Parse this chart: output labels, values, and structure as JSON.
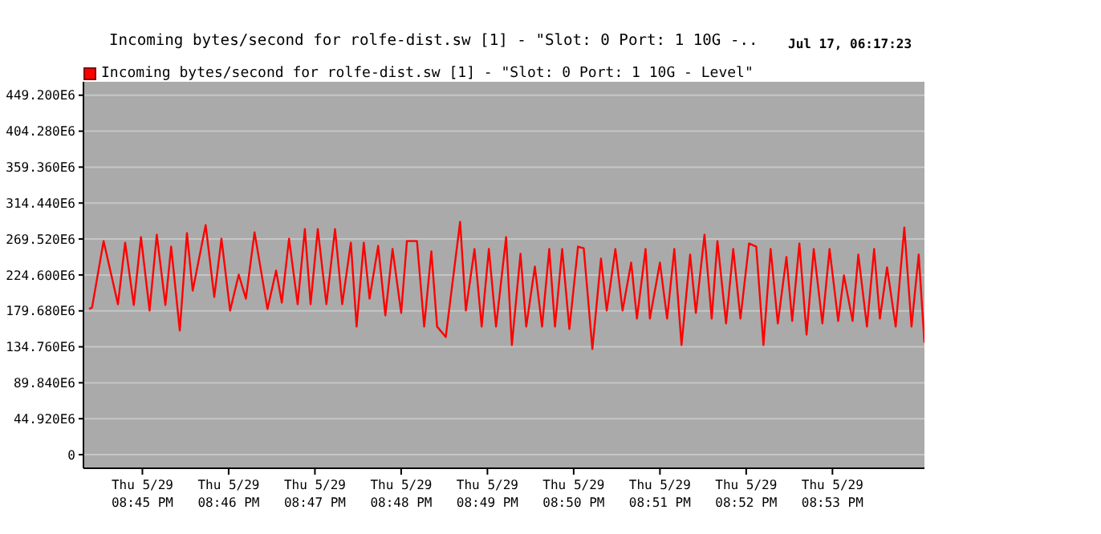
{
  "chart_data": {
    "type": "line",
    "title": "Incoming bytes/second for rolfe-dist.sw [1] - \"Slot: 0 Port: 1 10G -..",
    "subtitle": "Jul 17, 06:17:23",
    "x": [
      "--05-29T20:44:23",
      "--05-29T20:44:25",
      "--05-29T20:44:33",
      "--05-29T20:44:43",
      "--05-29T20:44:48",
      "--05-29T20:44:54",
      "--05-29T20:44:59",
      "--05-29T20:45:05",
      "--05-29T20:45:10",
      "--05-29T20:45:16",
      "--05-29T20:45:20",
      "--05-29T20:45:26",
      "--05-29T20:45:31",
      "--05-29T20:45:35",
      "--05-29T20:45:44",
      "--05-29T20:45:50",
      "--05-29T20:45:55",
      "--05-29T20:46:01",
      "--05-29T20:46:07",
      "--05-29T20:46:12",
      "--05-29T20:46:18",
      "--05-29T20:46:27",
      "--05-29T20:46:33",
      "--05-29T20:46:37",
      "--05-29T20:46:42",
      "--05-29T20:46:48",
      "--05-29T20:46:53",
      "--05-29T20:46:57",
      "--05-29T20:47:02",
      "--05-29T20:47:08",
      "--05-29T20:47:14",
      "--05-29T20:47:19",
      "--05-29T20:47:25",
      "--05-29T20:47:29",
      "--05-29T20:47:34",
      "--05-29T20:47:38",
      "--05-29T20:47:44",
      "--05-29T20:47:49",
      "--05-29T20:47:54",
      "--05-29T20:48:00",
      "--05-29T20:48:04",
      "--05-29T20:48:11",
      "--05-29T20:48:16",
      "--05-29T20:48:21",
      "--05-29T20:48:25",
      "--05-29T20:48:31",
      "--05-29T20:48:41",
      "--05-29T20:48:45",
      "--05-29T20:48:51",
      "--05-29T20:48:56",
      "--05-29T20:49:01",
      "--05-29T20:49:06",
      "--05-29T20:49:13",
      "--05-29T20:49:17",
      "--05-29T20:49:23",
      "--05-29T20:49:27",
      "--05-29T20:49:33",
      "--05-29T20:49:38",
      "--05-29T20:49:43",
      "--05-29T20:49:47",
      "--05-29T20:49:52",
      "--05-29T20:49:57",
      "--05-29T20:50:03",
      "--05-29T20:50:07",
      "--05-29T20:50:13",
      "--05-29T20:50:19",
      "--05-29T20:50:23",
      "--05-29T20:50:29",
      "--05-29T20:50:34",
      "--05-29T20:50:40",
      "--05-29T20:50:44",
      "--05-29T20:50:50",
      "--05-29T20:50:53",
      "--05-29T20:51:00",
      "--05-29T20:51:05",
      "--05-29T20:51:10",
      "--05-29T20:51:15",
      "--05-29T20:51:21",
      "--05-29T20:51:25",
      "--05-29T20:51:31",
      "--05-29T20:51:36",
      "--05-29T20:51:40",
      "--05-29T20:51:46",
      "--05-29T20:51:51",
      "--05-29T20:51:56",
      "--05-29T20:52:02",
      "--05-29T20:52:07",
      "--05-29T20:52:12",
      "--05-29T20:52:17",
      "--05-29T20:52:22",
      "--05-29T20:52:28",
      "--05-29T20:52:32",
      "--05-29T20:52:37",
      "--05-29T20:52:42",
      "--05-29T20:52:47",
      "--05-29T20:52:53",
      "--05-29T20:52:58",
      "--05-29T20:53:04",
      "--05-29T20:53:08",
      "--05-29T20:53:14",
      "--05-29T20:53:18",
      "--05-29T20:53:24",
      "--05-29T20:53:29",
      "--05-29T20:53:33",
      "--05-29T20:53:38",
      "--05-29T20:53:44",
      "--05-29T20:53:50",
      "--05-29T20:53:55",
      "--05-29T20:54:00",
      "--05-29T20:54:04"
    ],
    "series": [
      {
        "name": "Incoming bytes/second for rolfe-dist.sw [1] - \"Slot: 0 Port: 1 10G - Level\"",
        "color": "#ff0000",
        "values": [
          182000000,
          184000000,
          267000000,
          188000000,
          265000000,
          187000000,
          272000000,
          180000000,
          275000000,
          187000000,
          260000000,
          155000000,
          277000000,
          205000000,
          287000000,
          197000000,
          270000000,
          180000000,
          225000000,
          195000000,
          278000000,
          182000000,
          230000000,
          190000000,
          270000000,
          188000000,
          282000000,
          188000000,
          282000000,
          188000000,
          282000000,
          188000000,
          265000000,
          160000000,
          265000000,
          195000000,
          261000000,
          174000000,
          257000000,
          177000000,
          267000000,
          267000000,
          160000000,
          254000000,
          160000000,
          147000000,
          291000000,
          180000000,
          257000000,
          160000000,
          257000000,
          160000000,
          272000000,
          137000000,
          251000000,
          160000000,
          235000000,
          160000000,
          257000000,
          160000000,
          257000000,
          157000000,
          260000000,
          258000000,
          132000000,
          245000000,
          180000000,
          257000000,
          180000000,
          240000000,
          170000000,
          257000000,
          170000000,
          240000000,
          170000000,
          257000000,
          137000000,
          250000000,
          177000000,
          275000000,
          170000000,
          267000000,
          164000000,
          257000000,
          170000000,
          264000000,
          260000000,
          137000000,
          257000000,
          164000000,
          247000000,
          167000000,
          264000000,
          150000000,
          257000000,
          164000000,
          257000000,
          167000000,
          224000000,
          167000000,
          250000000,
          160000000,
          257000000,
          170000000,
          234000000,
          160000000,
          284000000,
          160000000,
          250000000,
          140000000
        ]
      }
    ],
    "xlim": [
      "--05-29T20:44:19",
      "--05-29T20:54:04"
    ],
    "xticks": [
      {
        "value": "--05-29T20:45",
        "label": "Thu 5/29\n08:45 PM"
      },
      {
        "value": "--05-29T20:46",
        "label": "Thu 5/29\n08:46 PM"
      },
      {
        "value": "--05-29T20:47",
        "label": "Thu 5/29\n08:47 PM"
      },
      {
        "value": "--05-29T20:48",
        "label": "Thu 5/29\n08:48 PM"
      },
      {
        "value": "--05-29T20:49",
        "label": "Thu 5/29\n08:49 PM"
      },
      {
        "value": "--05-29T20:50",
        "label": "Thu 5/29\n08:50 PM"
      },
      {
        "value": "--05-29T20:51",
        "label": "Thu 5/29\n08:51 PM"
      },
      {
        "value": "--05-29T20:52",
        "label": "Thu 5/29\n08:52 PM"
      },
      {
        "value": "--05-29T20:53",
        "label": "Thu 5/29\n08:53 PM"
      }
    ],
    "ylim": [
      -17000000,
      466000000
    ],
    "yticks": [
      0,
      {
        "value": 44920000,
        "label": "44.920E6"
      },
      {
        "value": 89840000,
        "label": "89.840E6"
      },
      {
        "value": 134760000,
        "label": "134.760E6"
      },
      {
        "value": 179680000,
        "label": "179.680E6"
      },
      {
        "value": 224600000,
        "label": "224.600E6"
      },
      {
        "value": 269520000,
        "label": "269.520E6"
      },
      {
        "value": 314440000,
        "label": "314.440E6"
      },
      {
        "value": 359360000,
        "label": "359.360E6"
      },
      {
        "value": 404280000,
        "label": "404.280E6"
      },
      {
        "value": 449200000,
        "label": "449.200E6"
      }
    ],
    "grid": "y",
    "legend": "top left",
    "marker": "none",
    "line_style": "solid"
  }
}
